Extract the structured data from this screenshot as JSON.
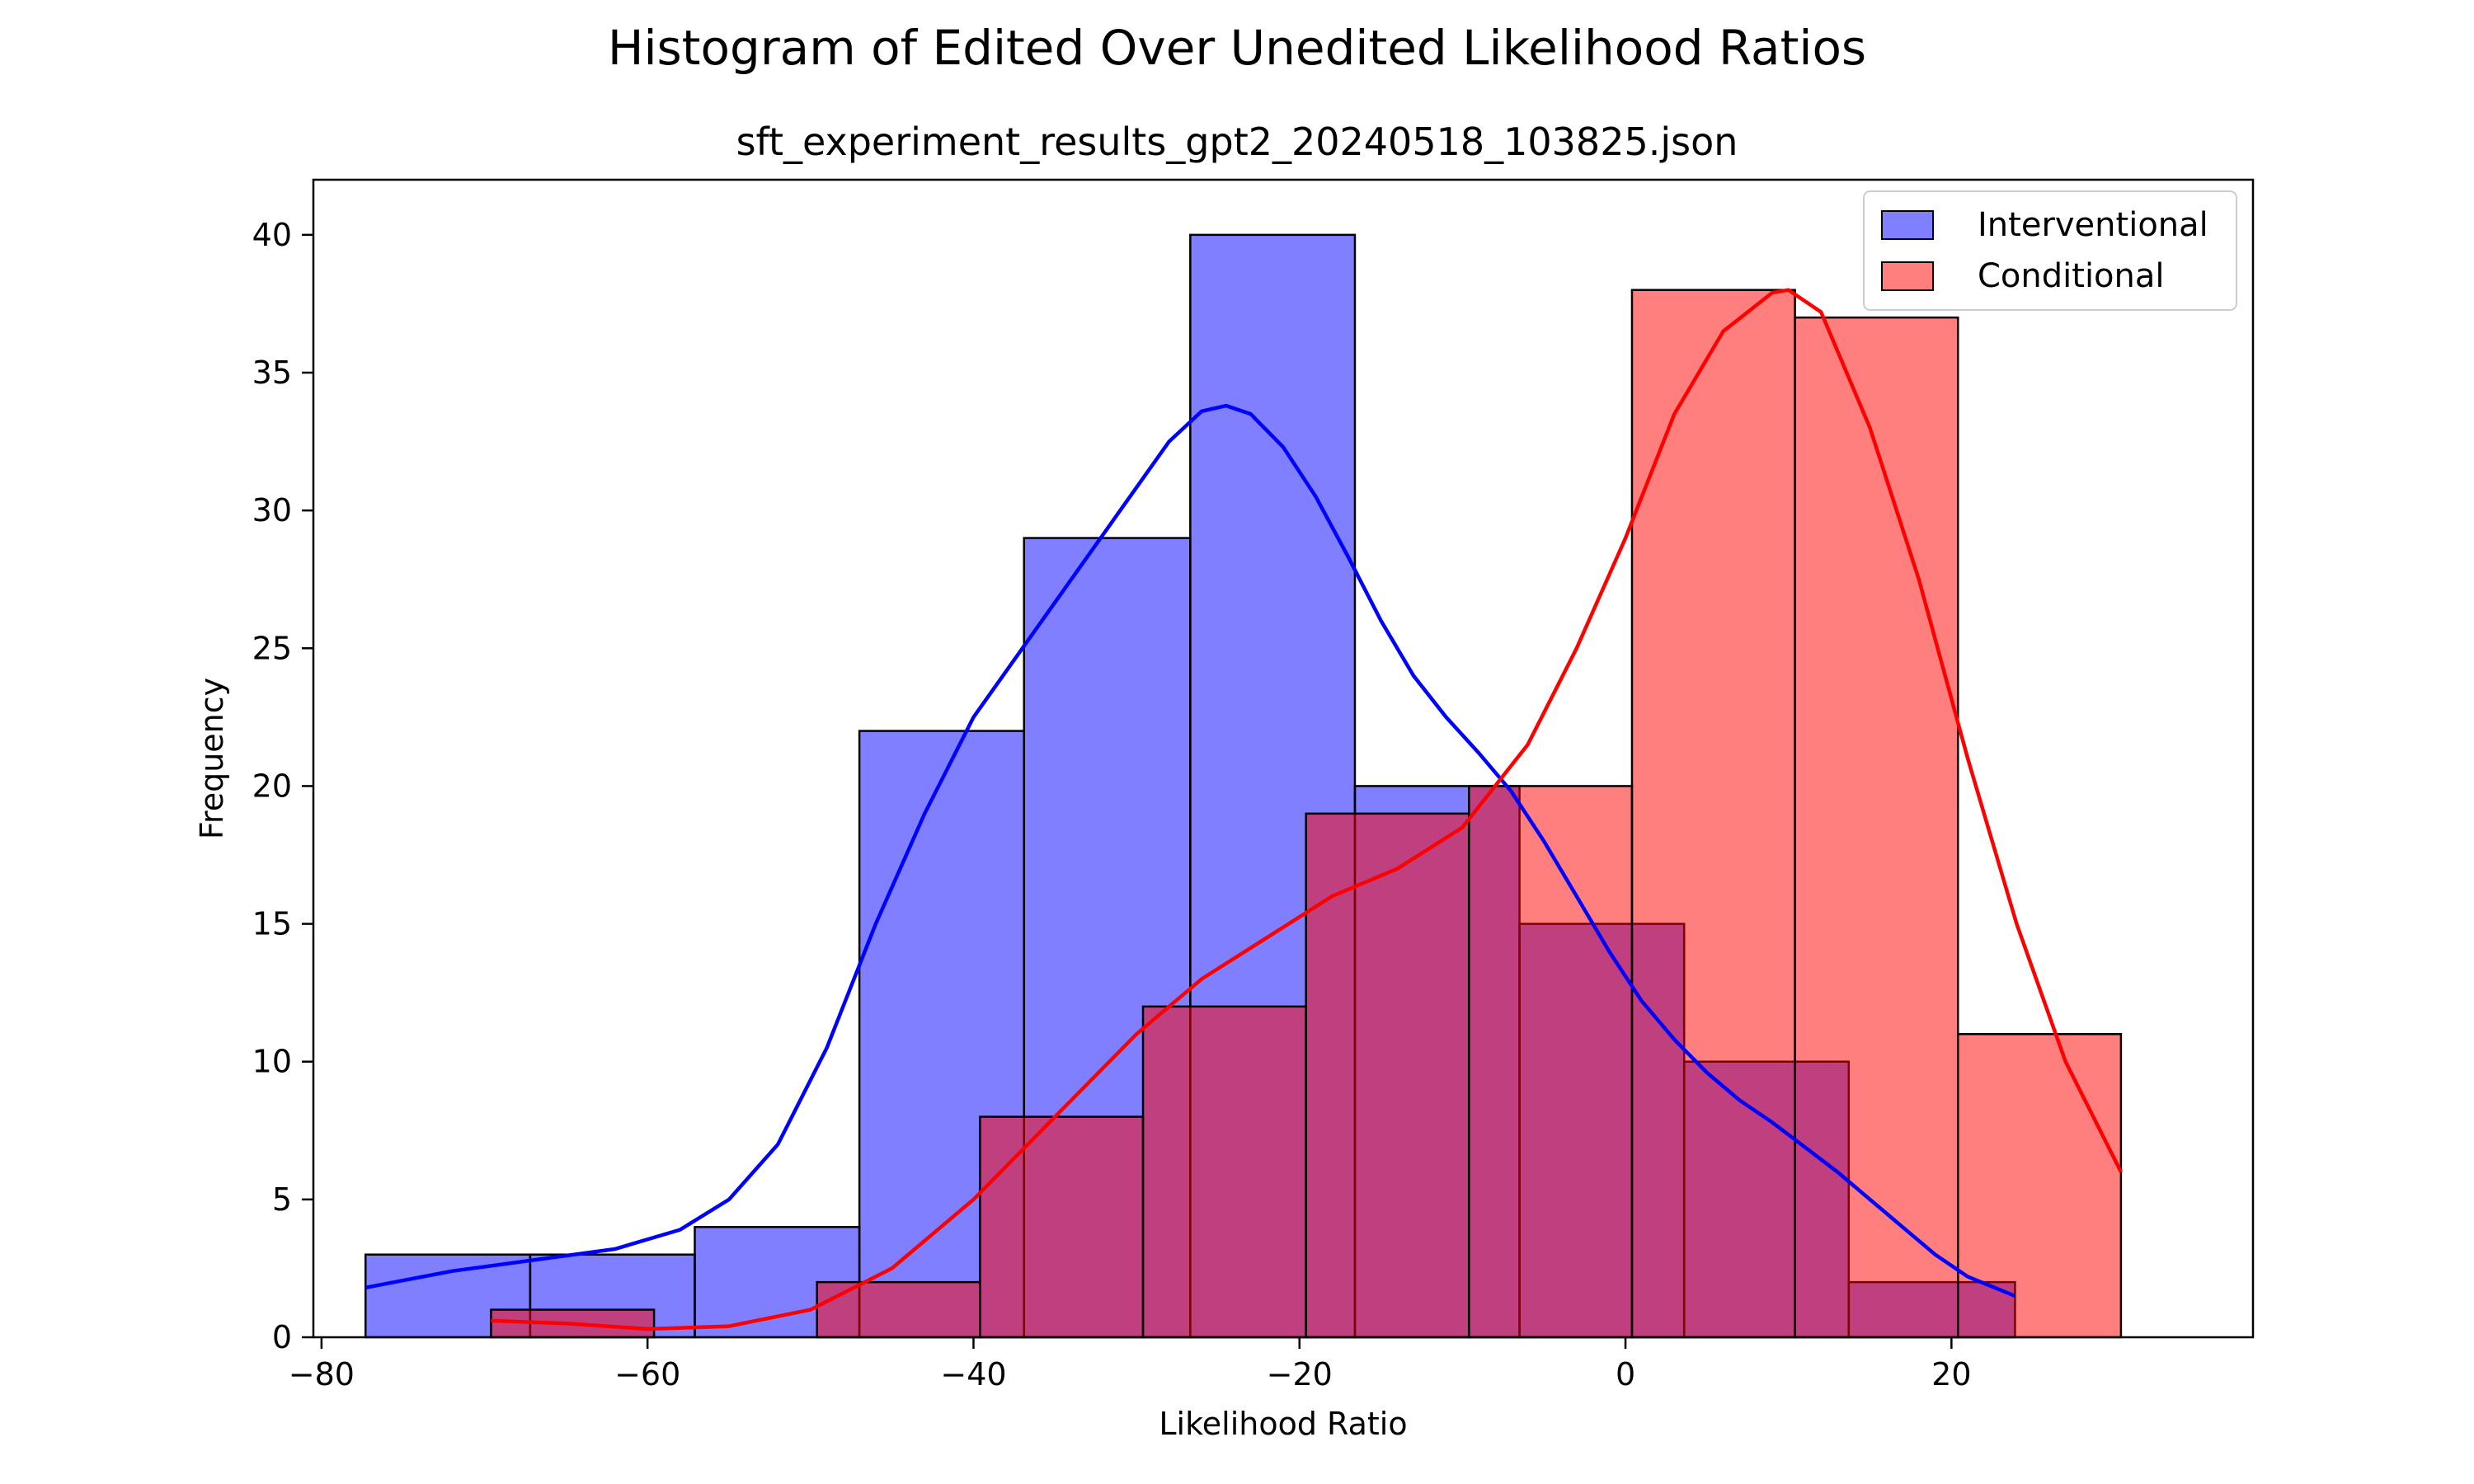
{
  "chart_data": {
    "type": "bar",
    "suptitle": "Histogram of Edited Over Unedited Likelihood Ratios",
    "title": "sft_experiment_results_gpt2_20240518_103825.json",
    "xlabel": "Likelihood Ratio",
    "ylabel": "Frequency",
    "xlim": [
      -80.5,
      38.5
    ],
    "ylim": [
      0,
      42
    ],
    "xticks": [
      -80,
      -60,
      -40,
      -20,
      0,
      20
    ],
    "xtick_labels": [
      "−80",
      "−60",
      "−40",
      "−20",
      "0",
      "20"
    ],
    "yticks": [
      0,
      5,
      10,
      15,
      20,
      25,
      30,
      35,
      40
    ],
    "ytick_labels": [
      "0",
      "5",
      "10",
      "15",
      "20",
      "25",
      "30",
      "35",
      "40"
    ],
    "grid": false,
    "legend_position": "top-right",
    "series": [
      {
        "name": "Interventional",
        "fill": "#0000ff",
        "fill_opacity": 0.5,
        "line_color": "#0000ff",
        "bin_edges": [
          -77.3,
          -67.2,
          -57.1,
          -47.0,
          -36.9,
          -26.7,
          -16.6,
          -6.5,
          3.6,
          13.7,
          23.9
        ],
        "counts": [
          3,
          3,
          4,
          22,
          29,
          40,
          20,
          15,
          10,
          2
        ],
        "kde": {
          "x": [
            -77.3,
            -72,
            -67,
            -62,
            -58,
            -55,
            -52,
            -49,
            -46,
            -43,
            -40,
            -37,
            -34,
            -31,
            -28,
            -26,
            -24.5,
            -23,
            -21,
            -19,
            -17,
            -15,
            -13,
            -11,
            -9,
            -7,
            -5,
            -3,
            -1,
            1,
            3,
            5,
            7,
            9,
            11,
            13,
            15,
            17,
            19,
            21,
            23.9
          ],
          "y": [
            1.8,
            2.4,
            2.8,
            3.2,
            3.9,
            5.0,
            7.0,
            10.5,
            15.0,
            19.0,
            22.5,
            25.0,
            27.5,
            30.0,
            32.5,
            33.6,
            33.8,
            33.5,
            32.3,
            30.5,
            28.3,
            26.0,
            24.0,
            22.5,
            21.2,
            19.8,
            18.0,
            16.0,
            14.0,
            12.2,
            10.8,
            9.6,
            8.6,
            7.8,
            6.9,
            6.0,
            5.0,
            4.0,
            3.0,
            2.2,
            1.5
          ]
        }
      },
      {
        "name": "Conditional",
        "fill": "#ff0000",
        "fill_opacity": 0.5,
        "line_color": "#ff0000",
        "bin_edges": [
          -69.6,
          -59.6,
          -49.6,
          -39.6,
          -29.6,
          -19.6,
          -9.6,
          0.4,
          10.4,
          20.4,
          30.4
        ],
        "counts": [
          1,
          0,
          2,
          8,
          12,
          19,
          20,
          38,
          37,
          11
        ],
        "kde": {
          "x": [
            -69.6,
            -65,
            -60,
            -55,
            -50,
            -45,
            -40,
            -35,
            -30,
            -26,
            -22,
            -18,
            -14,
            -10,
            -6,
            -3,
            0,
            3,
            6,
            9,
            10,
            12,
            15,
            18,
            21,
            24,
            27,
            30.4
          ],
          "y": [
            0.6,
            0.5,
            0.3,
            0.4,
            1.0,
            2.5,
            5.0,
            8.0,
            11.0,
            13.0,
            14.5,
            16.0,
            17.0,
            18.5,
            21.5,
            25.0,
            29.0,
            33.5,
            36.5,
            37.9,
            38.0,
            37.2,
            33.0,
            27.5,
            21.0,
            15.0,
            10.0,
            6.0
          ]
        }
      }
    ]
  }
}
